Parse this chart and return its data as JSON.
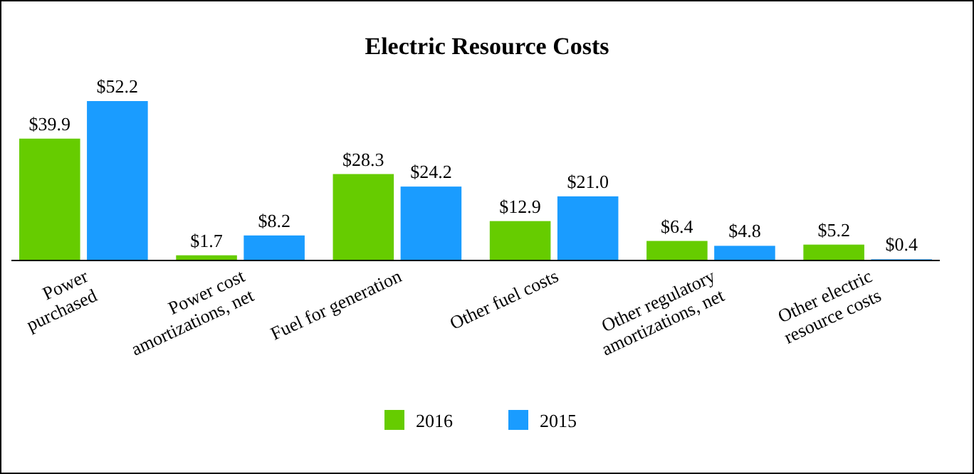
{
  "chart_data": {
    "type": "bar",
    "title": "Electric Resource Costs",
    "categories": [
      "Power\npurchased",
      "Power cost\namortizations, net",
      "Fuel for generation",
      "Other fuel costs",
      "Other regulatory\namortizations, net",
      "Other electric\nresource costs"
    ],
    "series": [
      {
        "name": "2016",
        "color": "#66cc00",
        "values": [
          39.9,
          1.7,
          28.3,
          12.9,
          6.4,
          5.2
        ],
        "value_labels": [
          "$39.9",
          "$1.7",
          "$28.3",
          "$12.9",
          "$6.4",
          "$5.2"
        ]
      },
      {
        "name": "2015",
        "color": "#1a9cff",
        "values": [
          52.2,
          8.2,
          24.2,
          21.0,
          4.8,
          0.4
        ],
        "value_labels": [
          "$52.2",
          "$8.2",
          "$24.2",
          "$21.0",
          "$4.8",
          "$0.4"
        ]
      }
    ],
    "legend": "bottom"
  }
}
